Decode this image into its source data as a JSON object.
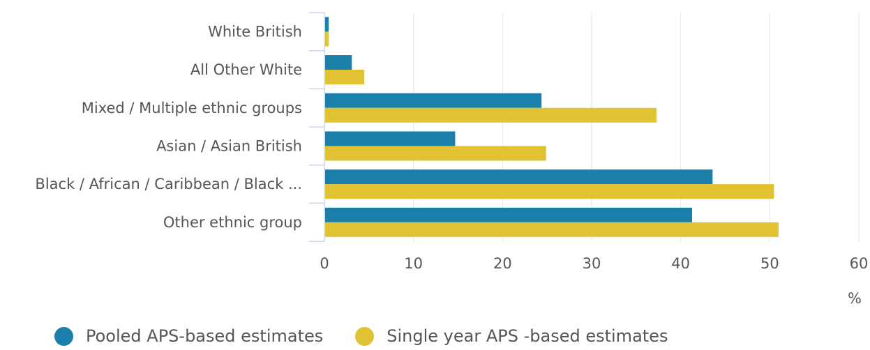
{
  "chart_data": {
    "type": "bar",
    "orientation": "horizontal",
    "categories": [
      "White British",
      "All Other White",
      "Mixed / Multiple ethnic groups",
      "Asian / Asian British",
      "Black / African / Caribbean / Black ...",
      "Other ethnic group"
    ],
    "series": [
      {
        "name": "Pooled APS-based estimates",
        "color": "#1a7fa9",
        "values": [
          0.4,
          3.0,
          24.3,
          14.6,
          43.5,
          41.2
        ]
      },
      {
        "name": "Single year APS -based estimates",
        "color": "#e1c232",
        "values": [
          0.4,
          4.4,
          37.2,
          24.8,
          50.4,
          50.9
        ]
      }
    ],
    "xlim": [
      0,
      60
    ],
    "xticks": [
      "0",
      "10",
      "20",
      "30",
      "40",
      "50",
      "60"
    ],
    "xlabel": "%",
    "grid": true,
    "legend_position": "bottom-left"
  }
}
